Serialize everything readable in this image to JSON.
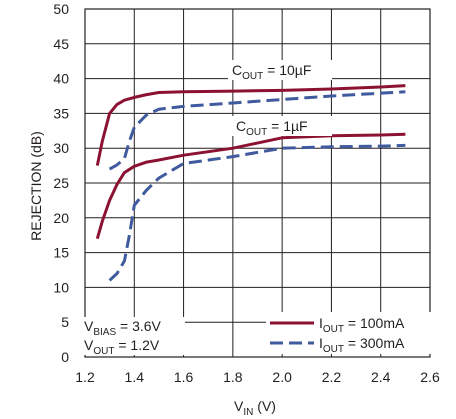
{
  "chart_data": {
    "type": "line",
    "xlabel": "V_IN (V)",
    "xlabel_main": "V",
    "xlabel_sub": "IN",
    "xlabel_unit": " (V)",
    "ylabel": "REJECTION (dB)",
    "xlim": [
      1.2,
      2.6
    ],
    "ylim": [
      0,
      50
    ],
    "x_ticks": [
      "1.2",
      "1.4",
      "1.6",
      "1.8",
      "2.0",
      "2.2",
      "2.4",
      "2.6"
    ],
    "y_ticks": [
      "0",
      "5",
      "10",
      "15",
      "20",
      "25",
      "30",
      "35",
      "40",
      "45",
      "50"
    ],
    "grid": true,
    "legend_position": "bottom-right",
    "legend": [
      {
        "main": "I",
        "sub": "OUT",
        "rest": " = 100mA",
        "text": "I_OUT = 100mA"
      },
      {
        "main": "I",
        "sub": "OUT",
        "rest": " = 300mA",
        "text": "I_OUT = 300mA"
      }
    ],
    "annotations": {
      "cout_10": {
        "main": "C",
        "sub": "OUT",
        "rest": " = 10µF",
        "text": "C_OUT = 10µF"
      },
      "cout_1": {
        "main": "C",
        "sub": "OUT",
        "rest": " = 1µF",
        "text": "C_OUT = 1µF"
      },
      "vbias": {
        "main": "V",
        "sub": "BIAS",
        "rest": " = 3.6V",
        "text": "V_BIAS = 3.6V"
      },
      "vout": {
        "main": "V",
        "sub": "OUT",
        "rest": " = 1.2V",
        "text": "V_OUT = 1.2V"
      }
    },
    "colors": {
      "iout_100mA": "#8b1230",
      "iout_300mA": "#3f5a9e",
      "grid": "#231f20"
    },
    "series": [
      {
        "name": "C_OUT = 10µF, I_OUT = 100mA",
        "style": "solid",
        "color_key": "iout_100mA",
        "x": [
          1.25,
          1.27,
          1.3,
          1.33,
          1.36,
          1.4,
          1.45,
          1.5,
          1.6,
          1.8,
          2.0,
          2.2,
          2.4,
          2.5
        ],
        "y": [
          27.5,
          31.0,
          35.0,
          36.3,
          36.9,
          37.3,
          37.7,
          38.0,
          38.1,
          38.2,
          38.3,
          38.5,
          38.8,
          39.0
        ]
      },
      {
        "name": "C_OUT = 10µF, I_OUT = 300mA",
        "style": "dashed",
        "color_key": "iout_300mA",
        "x": [
          1.3,
          1.33,
          1.36,
          1.38,
          1.4,
          1.45,
          1.5,
          1.6,
          1.8,
          2.0,
          2.2,
          2.4,
          2.5
        ],
        "y": [
          27.0,
          27.6,
          28.5,
          31.0,
          33.0,
          34.8,
          35.6,
          36.0,
          36.5,
          37.0,
          37.5,
          37.9,
          38.1
        ]
      },
      {
        "name": "C_OUT = 1µF, I_OUT = 100mA",
        "style": "solid",
        "color_key": "iout_100mA",
        "x": [
          1.25,
          1.27,
          1.3,
          1.33,
          1.36,
          1.4,
          1.45,
          1.5,
          1.6,
          1.8,
          2.0,
          2.2,
          2.4,
          2.5
        ],
        "y": [
          17.0,
          19.5,
          22.5,
          24.8,
          26.5,
          27.4,
          28.0,
          28.3,
          29.0,
          30.0,
          31.5,
          31.8,
          31.9,
          32.0
        ]
      },
      {
        "name": "C_OUT = 1µF, I_OUT = 300mA",
        "style": "dashed",
        "color_key": "iout_300mA",
        "x": [
          1.3,
          1.33,
          1.36,
          1.38,
          1.4,
          1.45,
          1.5,
          1.6,
          1.8,
          2.0,
          2.2,
          2.4,
          2.5
        ],
        "y": [
          11.0,
          12.0,
          13.8,
          17.5,
          21.8,
          24.0,
          25.7,
          27.8,
          28.8,
          30.0,
          30.2,
          30.3,
          30.4
        ]
      }
    ]
  }
}
